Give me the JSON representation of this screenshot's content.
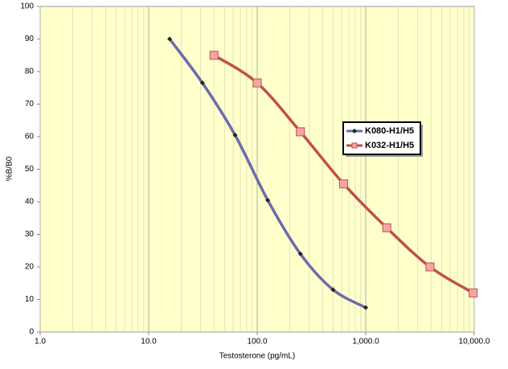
{
  "chart_data": {
    "type": "line",
    "xlabel": "Testosterone (pg/mL)",
    "ylabel": "%B/B0",
    "xscale": "log",
    "xlim": [
      1,
      10000
    ],
    "xticks": [
      {
        "value": 1,
        "label": "1.0"
      },
      {
        "value": 10,
        "label": "10.0"
      },
      {
        "value": 100,
        "label": "100.0"
      },
      {
        "value": 1000,
        "label": "1,000.0"
      },
      {
        "value": 10000,
        "label": "10,000.0"
      }
    ],
    "ylim": [
      0,
      100
    ],
    "yticks": [
      0,
      10,
      20,
      30,
      40,
      50,
      60,
      70,
      80,
      90,
      100
    ],
    "grid": "x",
    "legend": "right",
    "series": [
      {
        "name": "K080-H1/H5",
        "color": "#6b6bab",
        "x": [
          15.6,
          31.25,
          62.5,
          125,
          250,
          500,
          1000
        ],
        "values": [
          90,
          76.5,
          60.5,
          40.5,
          24,
          13,
          7.5
        ]
      },
      {
        "name": "K032-H1/H5",
        "color": "#c0504d",
        "x": [
          40,
          100,
          250,
          625,
          1562.5,
          3906.25,
          9765.6
        ],
        "values": [
          85,
          76.5,
          61.5,
          45.5,
          32,
          20,
          12
        ]
      }
    ]
  }
}
